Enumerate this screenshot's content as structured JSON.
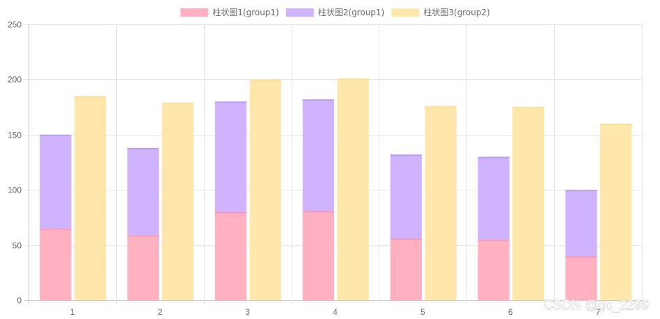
{
  "chart_data": {
    "type": "bar",
    "stacked": true,
    "categories": [
      "1",
      "2",
      "3",
      "4",
      "5",
      "6",
      "7"
    ],
    "series": [
      {
        "name": "柱状图1(group1)",
        "stack": "group1",
        "values": [
          65,
          59,
          80,
          81,
          56,
          55,
          40
        ],
        "color": "#ffb1c1",
        "border": "#ff6384"
      },
      {
        "name": "柱状图2(group1)",
        "stack": "group1",
        "values": [
          85,
          79,
          100,
          101,
          76,
          75,
          60
        ],
        "color": "#d0b3ff",
        "border": "#9966ff"
      },
      {
        "name": "柱状图3(group2)",
        "stack": "group2",
        "values": [
          185,
          179,
          200,
          201,
          176,
          175,
          160
        ],
        "color": "#ffe6aa",
        "border": "#ffcd56"
      }
    ],
    "yticks": [
      0,
      50,
      100,
      150,
      200,
      250
    ],
    "ylim": [
      0,
      250
    ],
    "grid": true,
    "legend": "top-center"
  },
  "watermark": "CSDN @gc_2299"
}
